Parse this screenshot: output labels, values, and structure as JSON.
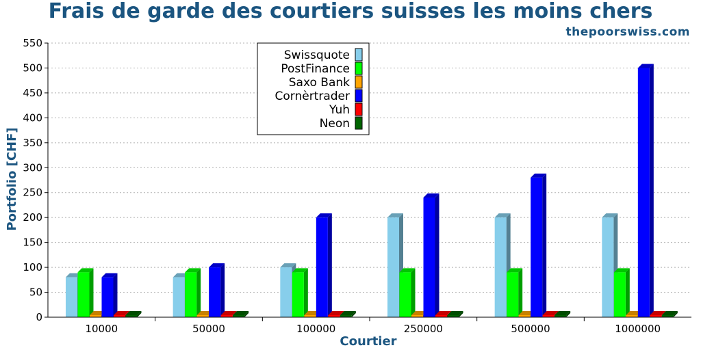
{
  "chart_data": {
    "type": "bar",
    "title": "Frais de garde des courtiers suisses les moins chers",
    "subtitle": "thepoorswiss.com",
    "xlabel": "Courtier",
    "ylabel": "Portfolio  [CHF]",
    "ylim": [
      0,
      550
    ],
    "yticks": [
      0,
      50,
      100,
      150,
      200,
      250,
      300,
      350,
      400,
      450,
      500,
      550
    ],
    "grid": true,
    "legend_position": "top-center",
    "categories": [
      "10000",
      "50000",
      "100000",
      "250000",
      "500000",
      "1000000"
    ],
    "series": [
      {
        "name": "Swissquote",
        "color": "#87ceeb",
        "values": [
          80,
          80,
          100,
          200,
          200,
          200
        ]
      },
      {
        "name": "PostFinance",
        "color": "#00ff00",
        "values": [
          90,
          90,
          90,
          90,
          90,
          90
        ]
      },
      {
        "name": "Saxo Bank",
        "color": "#ffa500",
        "values": [
          0,
          0,
          0,
          0,
          0,
          0
        ]
      },
      {
        "name": "Cornèrtrader",
        "color": "#0000ff",
        "values": [
          80,
          100,
          200,
          240,
          280,
          500
        ]
      },
      {
        "name": "Yuh",
        "color": "#ff0000",
        "values": [
          0,
          0,
          0,
          0,
          0,
          0
        ]
      },
      {
        "name": "Neon",
        "color": "#006400",
        "values": [
          0,
          0,
          0,
          0,
          0,
          0
        ]
      }
    ]
  }
}
